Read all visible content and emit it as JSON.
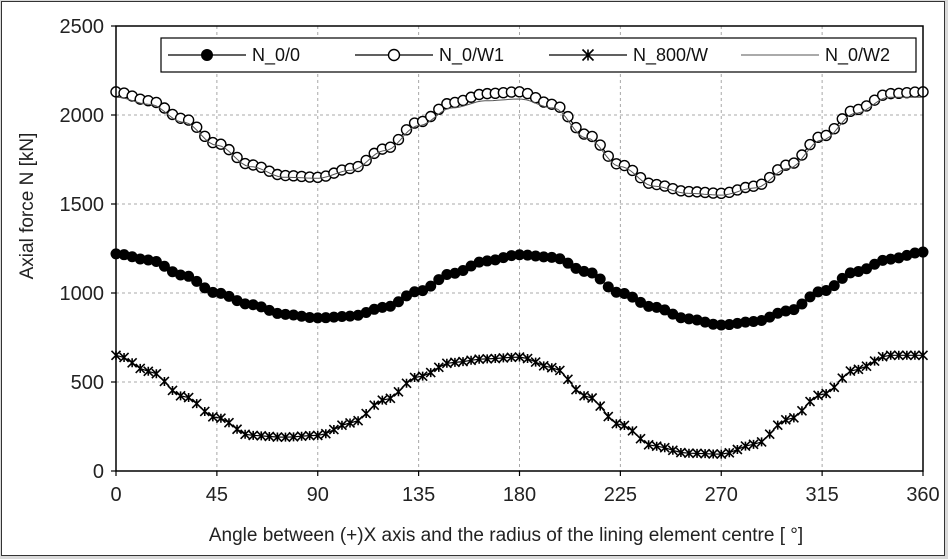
{
  "chart_data": {
    "type": "line",
    "title": "",
    "xlabel": "Angle between (+)X axis and the radius of the lining element centre [ °]",
    "ylabel": "Axial force N [kN]",
    "xlim": [
      0,
      360
    ],
    "ylim": [
      0,
      2500
    ],
    "xticks": [
      0,
      45,
      90,
      135,
      180,
      225,
      270,
      315,
      360
    ],
    "yticks": [
      0,
      500,
      1000,
      1500,
      2000,
      2500
    ],
    "grid": true,
    "legend_position": "top",
    "colors": {
      "series": "#000000",
      "grid": "#a8a8a8",
      "thin_line": "#555555"
    },
    "series": [
      {
        "name": "N_0/0",
        "marker": "filled-circle",
        "x": [
          0,
          15,
          30,
          45,
          60,
          75,
          90,
          105,
          120,
          135,
          150,
          165,
          180,
          195,
          210,
          225,
          240,
          255,
          270,
          285,
          300,
          315,
          330,
          345,
          360
        ],
        "values": [
          1220,
          1185,
          1100,
          1000,
          935,
          880,
          860,
          870,
          920,
          1010,
          1110,
          1180,
          1215,
          1200,
          1120,
          1000,
          920,
          855,
          820,
          840,
          900,
          1010,
          1120,
          1190,
          1230
        ]
      },
      {
        "name": "N_0/W1",
        "marker": "open-circle",
        "x": [
          0,
          15,
          30,
          45,
          60,
          75,
          90,
          105,
          120,
          135,
          150,
          165,
          180,
          195,
          210,
          225,
          240,
          255,
          270,
          285,
          300,
          315,
          330,
          345,
          360
        ],
        "values": [
          2130,
          2080,
          1980,
          1840,
          1720,
          1660,
          1650,
          1700,
          1810,
          1960,
          2070,
          2120,
          2130,
          2060,
          1890,
          1720,
          1610,
          1570,
          1560,
          1600,
          1720,
          1880,
          2030,
          2120,
          2130
        ]
      },
      {
        "name": "N_800/W",
        "marker": "asterisk",
        "x": [
          0,
          15,
          30,
          45,
          60,
          75,
          90,
          105,
          120,
          135,
          150,
          165,
          180,
          195,
          210,
          225,
          240,
          255,
          270,
          285,
          300,
          315,
          330,
          345,
          360
        ],
        "values": [
          650,
          560,
          420,
          300,
          200,
          190,
          200,
          270,
          400,
          530,
          610,
          630,
          640,
          580,
          420,
          260,
          140,
          100,
          95,
          150,
          290,
          430,
          570,
          650,
          650
        ]
      },
      {
        "name": "N_0/W2",
        "marker": "none",
        "x": [
          0,
          15,
          30,
          45,
          60,
          75,
          90,
          105,
          120,
          135,
          150,
          165,
          180,
          195,
          210,
          225,
          240,
          255,
          270,
          285,
          300,
          315,
          330,
          345,
          360
        ],
        "values": [
          2100,
          2060,
          1960,
          1830,
          1710,
          1650,
          1645,
          1690,
          1800,
          1940,
          2040,
          2080,
          2090,
          2040,
          1870,
          1710,
          1600,
          1560,
          1550,
          1590,
          1700,
          1860,
          2010,
          2100,
          2100
        ]
      }
    ]
  }
}
